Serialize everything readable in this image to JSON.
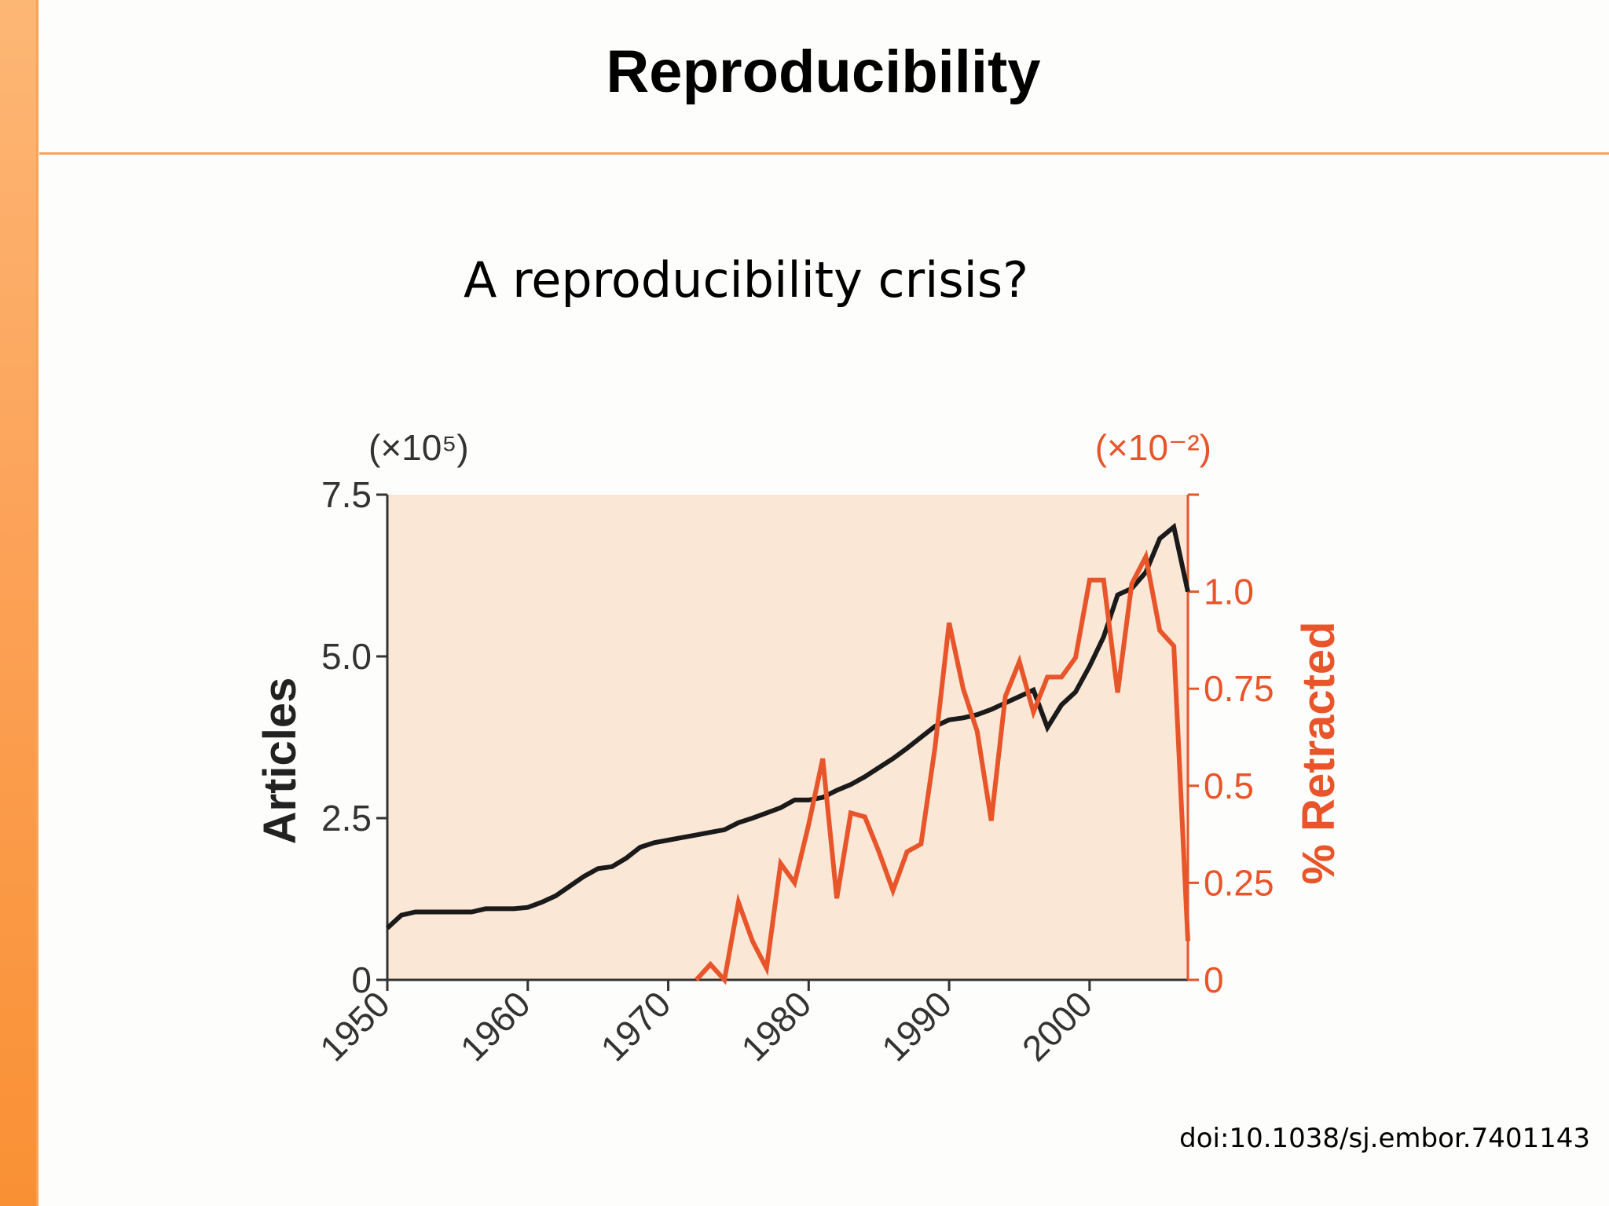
{
  "slide": {
    "title": "Reproducibility",
    "subtitle": "A reproducibility crisis?",
    "citation": "doi:10.1038/sj.embor.7401143"
  },
  "colors": {
    "accent_orange": "#f99034",
    "plot_background": "#fbe7d6",
    "articles_line": "#1a1a1a",
    "retracted_line": "#e8552a"
  },
  "chart_data": {
    "type": "line",
    "xlabel": "",
    "ylabel": "Articles",
    "y2label": "% Retracted",
    "y_multiplier": "(×10⁵)",
    "y2_multiplier": "(×10⁻²)",
    "xlim": [
      1950,
      2007
    ],
    "ylim": [
      0,
      7.5
    ],
    "y2lim": [
      0,
      1.25
    ],
    "x_ticks": [
      "1950",
      "1960",
      "1970",
      "1980",
      "1990",
      "2000"
    ],
    "y_ticks": [
      "0",
      "2.5",
      "5.0",
      "7.5"
    ],
    "y2_ticks": [
      "0",
      "0.25",
      "0.5",
      "0.75",
      "1.0"
    ],
    "series": [
      {
        "name": "Articles",
        "axis": "left",
        "x": [
          1950,
          1951,
          1952,
          1953,
          1954,
          1955,
          1956,
          1957,
          1958,
          1959,
          1960,
          1961,
          1962,
          1963,
          1964,
          1965,
          1966,
          1967,
          1968,
          1969,
          1970,
          1971,
          1972,
          1973,
          1974,
          1975,
          1976,
          1977,
          1978,
          1979,
          1980,
          1981,
          1982,
          1983,
          1984,
          1985,
          1986,
          1987,
          1988,
          1989,
          1990,
          1991,
          1992,
          1993,
          1994,
          1995,
          1996,
          1997,
          1998,
          1999,
          2000,
          2001,
          2002,
          2003,
          2004,
          2005,
          2006,
          2007
        ],
        "values": [
          0.8,
          1.0,
          1.05,
          1.05,
          1.05,
          1.05,
          1.05,
          1.1,
          1.1,
          1.1,
          1.12,
          1.2,
          1.3,
          1.45,
          1.6,
          1.72,
          1.75,
          1.88,
          2.05,
          2.12,
          2.16,
          2.2,
          2.24,
          2.28,
          2.32,
          2.43,
          2.5,
          2.58,
          2.66,
          2.78,
          2.78,
          2.82,
          2.93,
          3.02,
          3.14,
          3.28,
          3.42,
          3.58,
          3.75,
          3.92,
          4.02,
          4.05,
          4.1,
          4.18,
          4.28,
          4.38,
          4.48,
          3.9,
          4.25,
          4.45,
          4.85,
          5.3,
          5.95,
          6.05,
          6.3,
          6.82,
          7.0,
          6.0
        ]
      },
      {
        "name": "% Retracted",
        "axis": "right",
        "x": [
          1972,
          1973,
          1974,
          1975,
          1976,
          1977,
          1978,
          1979,
          1980,
          1981,
          1982,
          1983,
          1984,
          1985,
          1986,
          1987,
          1988,
          1989,
          1990,
          1991,
          1992,
          1993,
          1994,
          1995,
          1996,
          1997,
          1998,
          1999,
          2000,
          2001,
          2002,
          2003,
          2004,
          2005,
          2006,
          2007
        ],
        "values": [
          0.0,
          0.04,
          0.0,
          0.2,
          0.1,
          0.03,
          0.3,
          0.25,
          0.4,
          0.57,
          0.21,
          0.43,
          0.42,
          0.33,
          0.23,
          0.33,
          0.35,
          0.6,
          0.92,
          0.75,
          0.64,
          0.41,
          0.73,
          0.82,
          0.69,
          0.78,
          0.78,
          0.83,
          1.03,
          1.03,
          0.74,
          1.02,
          1.09,
          0.9,
          0.86,
          0.1
        ]
      }
    ]
  }
}
